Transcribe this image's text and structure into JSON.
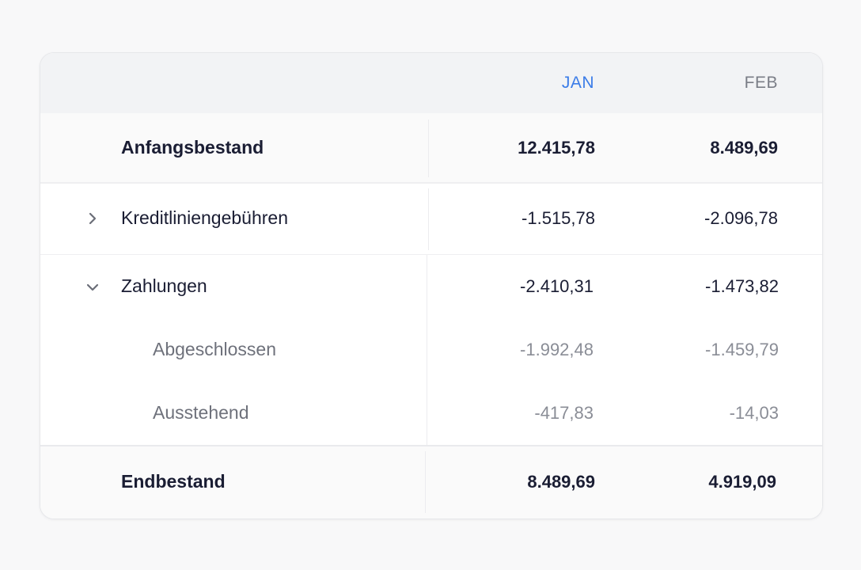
{
  "header": {
    "months": [
      "JAN",
      "FEB"
    ],
    "active_color": "#3b7ce8"
  },
  "rows": {
    "start": {
      "label": "Anfangsbestand",
      "jan": "12.415,78",
      "feb": "8.489,69"
    },
    "credit": {
      "label": "Kreditliniengebühren",
      "jan": "-1.515,78",
      "feb": "-2.096,78",
      "expanded": false,
      "icon": "chevron-right-icon"
    },
    "payments": {
      "label": "Zahlungen",
      "jan": "-2.410,31",
      "feb": "-1.473,82",
      "expanded": true,
      "icon": "chevron-down-icon",
      "children": [
        {
          "label": "Abgeschlossen",
          "jan": "-1.992,48",
          "feb": "-1.459,79"
        },
        {
          "label": "Ausstehend",
          "jan": "-417,83",
          "feb": "-14,03"
        }
      ]
    },
    "end": {
      "label": "Endbestand",
      "jan": "8.489,69",
      "feb": "4.919,09"
    }
  }
}
